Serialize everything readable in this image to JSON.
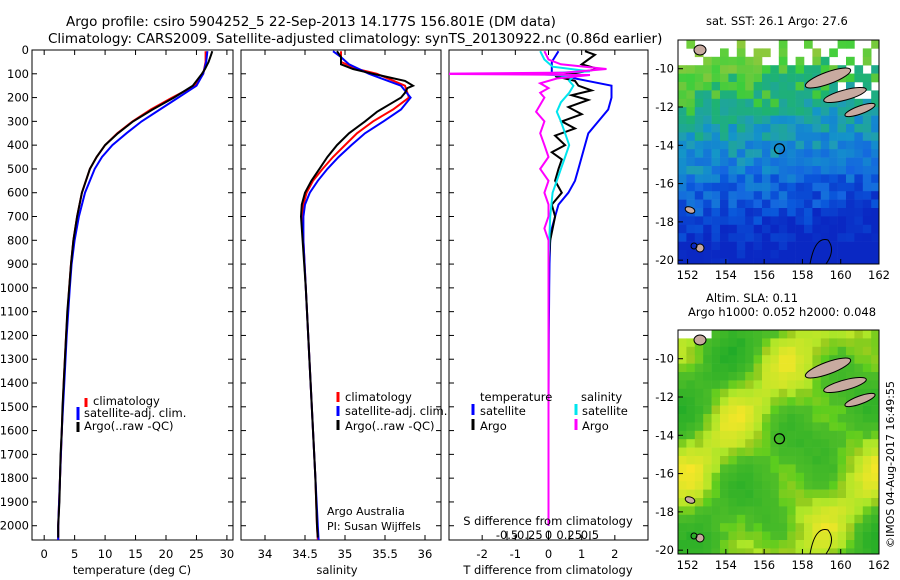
{
  "header": {
    "line1": "Argo profile: csiro 5904252_5 22-Sep-2013 14.177S 156.801E (DM data)",
    "line2": "Climatology: CARS2009. Satellite-adjusted climatology: synTS_20130922.nc (0.86d earlier)"
  },
  "colors": {
    "climatology": "#ff0000",
    "satellite": "#0000ff",
    "argo": "#000000",
    "sal_satellite": "#00e5ee",
    "sal_argo": "#ff00ff"
  },
  "chart_data": [
    {
      "type": "line",
      "id": "temperature",
      "xlabel": "temperature (deg C)",
      "ylabel": "",
      "xlim": [
        -2,
        31
      ],
      "ylim": [
        0,
        2060
      ],
      "y_inverted": true,
      "xticks": [
        "0",
        "5",
        "10",
        "15",
        "20",
        "25",
        "30"
      ],
      "yticks": [
        "0",
        "100",
        "200",
        "300",
        "400",
        "500",
        "600",
        "700",
        "800",
        "900",
        "1000",
        "1100",
        "1200",
        "1300",
        "1400",
        "1500",
        "1600",
        "1700",
        "1800",
        "1900",
        "2000"
      ],
      "legend": [
        "climatology",
        "satellite-adj. clim.",
        "Argo(..raw -QC)"
      ],
      "series": [
        {
          "name": "climatology",
          "depth": [
            5,
            50,
            100,
            150,
            200,
            250,
            300,
            350,
            400,
            450,
            500,
            600,
            700,
            800,
            900,
            1000,
            1200,
            1400,
            1600,
            1800,
            2000,
            2060
          ],
          "values": [
            26.5,
            26.5,
            26.1,
            24.8,
            21.0,
            17.5,
            14.5,
            12.0,
            10.0,
            8.6,
            7.5,
            6.2,
            5.4,
            4.8,
            4.4,
            4.1,
            3.6,
            3.2,
            2.9,
            2.6,
            2.3,
            2.3
          ]
        },
        {
          "name": "satellite-adj. clim.",
          "depth": [
            5,
            50,
            100,
            150,
            200,
            250,
            300,
            350,
            400,
            450,
            500,
            600,
            700,
            800,
            900,
            1000,
            1200,
            1400,
            1600,
            1800,
            2000,
            2060
          ],
          "values": [
            26.8,
            26.6,
            26.1,
            25.0,
            22.0,
            19.0,
            16.0,
            13.5,
            11.2,
            9.5,
            8.3,
            6.7,
            5.7,
            5.0,
            4.5,
            4.2,
            3.7,
            3.3,
            2.9,
            2.6,
            2.3,
            2.3
          ]
        },
        {
          "name": "Argo(..raw -QC)",
          "depth": [
            5,
            20,
            50,
            80,
            100,
            150,
            200,
            250,
            300,
            350,
            400,
            450,
            500,
            600,
            700,
            800,
            900,
            1000,
            1100,
            1200,
            1300,
            1400,
            1500,
            1600,
            1700,
            1800,
            1900,
            2000,
            2050
          ],
          "values": [
            27.6,
            27.4,
            27.0,
            26.4,
            25.9,
            24.4,
            21.3,
            17.8,
            14.6,
            12.1,
            10.0,
            8.6,
            7.5,
            6.2,
            5.4,
            4.8,
            4.4,
            4.1,
            3.8,
            3.6,
            3.4,
            3.2,
            3.0,
            2.9,
            2.7,
            2.6,
            2.5,
            2.3,
            2.3
          ]
        }
      ]
    },
    {
      "type": "line",
      "id": "salinity",
      "xlabel": "salinity",
      "xlim": [
        33.7,
        36.2
      ],
      "ylim": [
        0,
        2060
      ],
      "y_inverted": true,
      "xticks": [
        "34",
        "34.5",
        "35",
        "35.5",
        "36"
      ],
      "legend": [
        "climatology",
        "satellite-adj. clim.",
        "Argo(..raw -QC)"
      ],
      "annotation": [
        "Argo Australia",
        "PI: Susan Wijffels"
      ],
      "series": [
        {
          "name": "climatology",
          "depth": [
            5,
            50,
            80,
            100,
            150,
            200,
            250,
            300,
            350,
            400,
            450,
            500,
            550,
            600,
            650,
            700,
            800,
            1000,
            1200,
            1400,
            1600,
            1800,
            2000,
            2060
          ],
          "values": [
            34.95,
            34.95,
            35.15,
            35.4,
            35.75,
            35.8,
            35.6,
            35.35,
            35.15,
            35.0,
            34.85,
            34.72,
            34.6,
            34.52,
            34.48,
            34.47,
            34.48,
            34.51,
            34.54,
            34.57,
            34.6,
            34.63,
            34.65,
            34.66
          ]
        },
        {
          "name": "satellite-adj. clim.",
          "depth": [
            5,
            30,
            60,
            100,
            150,
            200,
            250,
            300,
            350,
            400,
            450,
            500,
            550,
            600,
            650,
            700,
            800,
            1000,
            1200,
            1400,
            1600,
            1800,
            2000,
            2060
          ],
          "values": [
            34.85,
            34.95,
            35.05,
            35.3,
            35.7,
            35.82,
            35.7,
            35.48,
            35.25,
            35.08,
            34.92,
            34.78,
            34.66,
            34.56,
            34.5,
            34.48,
            34.48,
            34.51,
            34.54,
            34.57,
            34.6,
            34.63,
            34.66,
            34.67
          ]
        },
        {
          "name": "Argo(..raw -QC)",
          "depth": [
            5,
            30,
            60,
            80,
            100,
            130,
            150,
            160,
            180,
            200,
            230,
            260,
            300,
            350,
            400,
            450,
            500,
            550,
            600,
            650,
            700,
            800,
            1000,
            1200,
            1400,
            1600,
            1800,
            2000,
            2050
          ],
          "values": [
            34.9,
            34.95,
            34.95,
            35.1,
            35.35,
            35.75,
            35.85,
            35.78,
            35.75,
            35.7,
            35.55,
            35.4,
            35.25,
            35.05,
            34.9,
            34.78,
            34.68,
            34.58,
            34.5,
            34.46,
            34.45,
            34.47,
            34.51,
            34.54,
            34.57,
            34.6,
            34.63,
            34.65,
            34.66
          ]
        }
      ]
    },
    {
      "type": "line",
      "id": "differences",
      "xlabel": "T difference from climatology",
      "x2label": "S difference from climatology",
      "xlim": [
        -3,
        3
      ],
      "ylim": [
        0,
        2060
      ],
      "y_inverted": true,
      "xticks": [
        "-2",
        "-1",
        "0",
        "1",
        "2"
      ],
      "x2ticks": [
        "-0.5",
        "-0.25",
        "0",
        "0.25",
        "0.5"
      ],
      "legend_temperature": [
        "temperature",
        "satellite",
        "Argo"
      ],
      "legend_salinity": [
        "salinity",
        "satellite",
        "Argo"
      ],
      "series": [
        {
          "name": "temperature satellite",
          "depth": [
            5,
            50,
            100,
            150,
            200,
            250,
            300,
            350,
            400,
            450,
            500,
            550,
            600,
            650,
            700,
            750,
            800,
            900,
            1000,
            1200,
            1500,
            2000
          ],
          "values": [
            0.3,
            0.1,
            0.1,
            1.9,
            1.9,
            1.8,
            1.5,
            1.2,
            1.1,
            1.0,
            0.9,
            0.8,
            0.6,
            0.3,
            0.2,
            0.1,
            0.05,
            0.03,
            0.02,
            0.01,
            0.0,
            0.0
          ]
        },
        {
          "name": "temperature Argo",
          "depth": [
            5,
            20,
            40,
            60,
            80,
            100,
            110,
            130,
            150,
            170,
            190,
            210,
            240,
            270,
            300,
            330,
            360,
            400,
            430,
            460,
            500,
            550,
            600,
            650,
            700,
            800,
            900,
            1000,
            1200,
            1500,
            2000
          ],
          "values": [
            1.1,
            1.4,
            1.2,
            1.0,
            1.5,
            0.7,
            0.2,
            0.8,
            0.9,
            1.3,
            0.7,
            1.2,
            0.6,
            1.0,
            0.4,
            0.8,
            0.2,
            0.5,
            0.1,
            0.4,
            0.3,
            0.2,
            0.4,
            0.1,
            0.2,
            0.05,
            0.0,
            0.0,
            0.0,
            0.0,
            0.0
          ]
        },
        {
          "name": "salinity satellite",
          "depth": [
            5,
            40,
            70,
            90,
            100,
            110,
            130,
            150,
            180,
            220,
            260,
            300,
            350,
            400,
            450,
            500,
            550,
            600,
            700,
            800,
            900,
            1000,
            1500,
            2000
          ],
          "values": [
            -0.1,
            -0.05,
            0.05,
            0.5,
            -0.2,
            0.3,
            0.25,
            0.3,
            0.25,
            0.15,
            0.1,
            0.15,
            0.2,
            0.25,
            0.2,
            0.15,
            0.1,
            0.05,
            0.02,
            0.01,
            0.0,
            0.0,
            0.0,
            0.0
          ]
        },
        {
          "name": "salinity Argo",
          "depth": [
            5,
            40,
            60,
            80,
            95,
            100,
            105,
            120,
            140,
            160,
            180,
            200,
            230,
            260,
            300,
            350,
            400,
            450,
            500,
            550,
            600,
            650,
            700,
            750,
            800,
            900,
            1000,
            1200,
            1500,
            2000
          ],
          "values": [
            -0.05,
            0.0,
            0.15,
            0.7,
            0.2,
            -1.5,
            0.5,
            0.1,
            -0.1,
            0.0,
            -0.1,
            -0.05,
            -0.1,
            -0.15,
            -0.05,
            -0.1,
            -0.05,
            0.0,
            -0.1,
            0.0,
            -0.05,
            0.0,
            0.0,
            -0.05,
            0.0,
            0.0,
            0.0,
            0.0,
            0.0,
            0.0
          ]
        }
      ]
    },
    {
      "type": "heatmap",
      "id": "sst_map",
      "title": "sat. SST: 26.1  Argo: 27.6",
      "xticks": [
        "152",
        "154",
        "156",
        "158",
        "160",
        "162"
      ],
      "yticks": [
        "-10",
        "-12",
        "-14",
        "-16",
        "-18",
        "-20"
      ],
      "xlim": [
        151.5,
        162
      ],
      "ylim": [
        -20.2,
        -8.5
      ],
      "marker": {
        "lon": 156.8,
        "lat": -14.18
      }
    },
    {
      "type": "heatmap",
      "id": "sla_map",
      "title_line1": "Altim. SLA: 0.11",
      "title_line2": "Argo h1000: 0.052  h2000: 0.048",
      "xticks": [
        "152",
        "154",
        "156",
        "158",
        "160",
        "162"
      ],
      "yticks": [
        "-10",
        "-12",
        "-14",
        "-16",
        "-18",
        "-20"
      ],
      "xlim": [
        151.5,
        162
      ],
      "ylim": [
        -20.2,
        -8.5
      ],
      "marker": {
        "lon": 156.8,
        "lat": -14.18
      }
    }
  ],
  "footer": {
    "stamp": "©IMOS 04-Aug-2017 16:49:55"
  }
}
